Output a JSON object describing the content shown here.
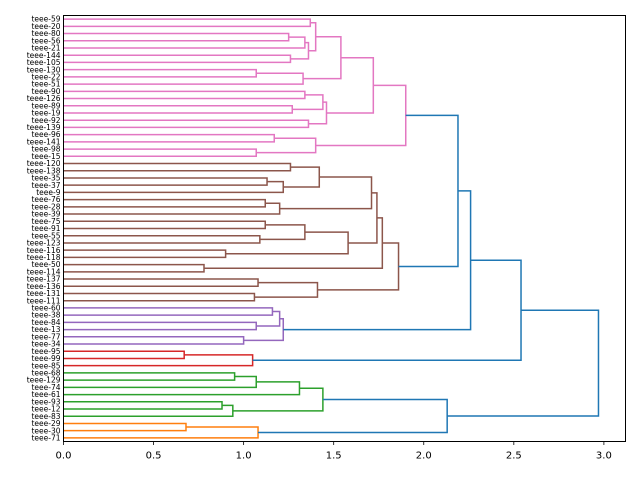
{
  "chart_data": {
    "type": "dendrogram",
    "title": "",
    "xlabel": "",
    "ylabel": "",
    "orientation": "right",
    "xlim": [
      0.0,
      3.12
    ],
    "x_ticks": [
      0.0,
      0.5,
      1.0,
      1.5,
      2.0,
      2.5,
      3.0
    ],
    "x_tick_labels": [
      "0.0",
      "0.5",
      "1.0",
      "1.5",
      "2.0",
      "2.5",
      "3.0"
    ],
    "above_threshold_color": "#1f77b4",
    "leaves": [
      "teee-59",
      "teee-20",
      "teee-80",
      "teee-56",
      "teee-21",
      "teee-144",
      "teee-105",
      "teee-130",
      "teee-22",
      "teee-51",
      "teee-90",
      "teee-126",
      "teee-89",
      "teee-19",
      "teee-92",
      "teee-139",
      "teee-96",
      "teee-141",
      "teee-98",
      "teee-15",
      "teee-120",
      "teee-138",
      "teee-35",
      "teee-37",
      "teee-9",
      "teee-76",
      "teee-28",
      "teee-39",
      "teee-75",
      "teee-91",
      "teee-55",
      "teee-123",
      "teee-116",
      "teee-118",
      "teee-50",
      "teee-114",
      "teee-137",
      "teee-136",
      "teee-131",
      "teee-111",
      "teee-60",
      "teee-38",
      "teee-84",
      "teee-13",
      "teee-77",
      "teee-34",
      "teee-95",
      "teee-99",
      "teee-85",
      "teee-68",
      "teee-129",
      "teee-74",
      "teee-61",
      "teee-93",
      "teee-12",
      "teee-83",
      "teee-29",
      "teee-30",
      "teee-71"
    ],
    "tree": {
      "h": 2.97,
      "c": "#1f77b4",
      "ch": [
        {
          "h": 2.54,
          "c": "#1f77b4",
          "ch": [
            {
              "h": 2.26,
              "c": "#1f77b4",
              "ch": [
                {
                  "h": 2.19,
                  "c": "#1f77b4",
                  "ch": [
                    {
                      "h": 1.9,
                      "c": "#e377c2",
                      "ch": [
                        {
                          "h": 1.72,
                          "c": "#e377c2",
                          "ch": [
                            {
                              "h": 1.54,
                              "c": "#e377c2",
                              "ch": [
                                {
                                  "h": 1.4,
                                  "c": "#e377c2",
                                  "ch": [
                                    {
                                      "h": 1.37,
                                      "c": "#e377c2",
                                      "ch": [
                                        0,
                                        1
                                      ]
                                    },
                                    {
                                      "h": 1.36,
                                      "c": "#e377c2",
                                      "ch": [
                                        {
                                          "h": 1.34,
                                          "c": "#e377c2",
                                          "ch": [
                                            {
                                              "h": 1.25,
                                              "c": "#e377c2",
                                              "ch": [
                                                2,
                                                3
                                              ]
                                            },
                                            4
                                          ]
                                        },
                                        {
                                          "h": 1.26,
                                          "c": "#e377c2",
                                          "ch": [
                                            5,
                                            6
                                          ]
                                        }
                                      ]
                                    }
                                  ]
                                },
                                {
                                  "h": 1.33,
                                  "c": "#e377c2",
                                  "ch": [
                                    {
                                      "h": 1.07,
                                      "c": "#e377c2",
                                      "ch": [
                                        7,
                                        8
                                      ]
                                    },
                                    9
                                  ]
                                }
                              ]
                            },
                            {
                              "h": 1.46,
                              "c": "#e377c2",
                              "ch": [
                                {
                                  "h": 1.44,
                                  "c": "#e377c2",
                                  "ch": [
                                    {
                                      "h": 1.34,
                                      "c": "#e377c2",
                                      "ch": [
                                        10,
                                        11
                                      ]
                                    },
                                    {
                                      "h": 1.27,
                                      "c": "#e377c2",
                                      "ch": [
                                        12,
                                        13
                                      ]
                                    }
                                  ]
                                },
                                {
                                  "h": 1.36,
                                  "c": "#e377c2",
                                  "ch": [
                                    14,
                                    15
                                  ]
                                }
                              ]
                            }
                          ]
                        },
                        {
                          "h": 1.4,
                          "c": "#e377c2",
                          "ch": [
                            {
                              "h": 1.17,
                              "c": "#e377c2",
                              "ch": [
                                16,
                                17
                              ]
                            },
                            {
                              "h": 1.07,
                              "c": "#e377c2",
                              "ch": [
                                18,
                                19
                              ]
                            }
                          ]
                        }
                      ]
                    },
                    {
                      "h": 1.86,
                      "c": "#8c564b",
                      "ch": [
                        {
                          "h": 1.77,
                          "c": "#8c564b",
                          "ch": [
                            {
                              "h": 1.74,
                              "c": "#8c564b",
                              "ch": [
                                {
                                  "h": 1.71,
                                  "c": "#8c564b",
                                  "ch": [
                                    {
                                      "h": 1.42,
                                      "c": "#8c564b",
                                      "ch": [
                                        {
                                          "h": 1.26,
                                          "c": "#8c564b",
                                          "ch": [
                                            20,
                                            21
                                          ]
                                        },
                                        {
                                          "h": 1.22,
                                          "c": "#8c564b",
                                          "ch": [
                                            {
                                              "h": 1.13,
                                              "c": "#8c564b",
                                              "ch": [
                                                22,
                                                23
                                              ]
                                            },
                                            24
                                          ]
                                        }
                                      ]
                                    },
                                    {
                                      "h": 1.2,
                                      "c": "#8c564b",
                                      "ch": [
                                        {
                                          "h": 1.12,
                                          "c": "#8c564b",
                                          "ch": [
                                            25,
                                            26
                                          ]
                                        },
                                        27
                                      ]
                                    }
                                  ]
                                },
                                {
                                  "h": 1.58,
                                  "c": "#8c564b",
                                  "ch": [
                                    {
                                      "h": 1.34,
                                      "c": "#8c564b",
                                      "ch": [
                                        {
                                          "h": 1.12,
                                          "c": "#8c564b",
                                          "ch": [
                                            28,
                                            29
                                          ]
                                        },
                                        {
                                          "h": 1.09,
                                          "c": "#8c564b",
                                          "ch": [
                                            30,
                                            31
                                          ]
                                        }
                                      ]
                                    },
                                    {
                                      "h": 0.9,
                                      "c": "#8c564b",
                                      "ch": [
                                        32,
                                        33
                                      ]
                                    }
                                  ]
                                }
                              ]
                            },
                            {
                              "h": 0.78,
                              "c": "#8c564b",
                              "ch": [
                                34,
                                35
                              ]
                            }
                          ]
                        },
                        {
                          "h": 1.41,
                          "c": "#8c564b",
                          "ch": [
                            {
                              "h": 1.08,
                              "c": "#8c564b",
                              "ch": [
                                36,
                                37
                              ]
                            },
                            {
                              "h": 1.06,
                              "c": "#8c564b",
                              "ch": [
                                38,
                                39
                              ]
                            }
                          ]
                        }
                      ]
                    }
                  ]
                },
                {
                  "h": 1.22,
                  "c": "#9467bd",
                  "ch": [
                    {
                      "h": 1.2,
                      "c": "#9467bd",
                      "ch": [
                        {
                          "h": 1.16,
                          "c": "#9467bd",
                          "ch": [
                            40,
                            41
                          ]
                        },
                        {
                          "h": 1.07,
                          "c": "#9467bd",
                          "ch": [
                            42,
                            43
                          ]
                        }
                      ]
                    },
                    {
                      "h": 1.0,
                      "c": "#9467bd",
                      "ch": [
                        44,
                        45
                      ]
                    }
                  ]
                }
              ]
            },
            {
              "h": 1.05,
              "c": "#d62728",
              "ch": [
                {
                  "h": 0.67,
                  "c": "#d62728",
                  "ch": [
                    46,
                    47
                  ]
                },
                48
              ]
            }
          ]
        },
        {
          "h": 2.13,
          "c": "#1f77b4",
          "ch": [
            {
              "h": 1.44,
              "c": "#2ca02c",
              "ch": [
                {
                  "h": 1.31,
                  "c": "#2ca02c",
                  "ch": [
                    {
                      "h": 1.07,
                      "c": "#2ca02c",
                      "ch": [
                        {
                          "h": 0.95,
                          "c": "#2ca02c",
                          "ch": [
                            49,
                            50
                          ]
                        },
                        51
                      ]
                    },
                    52
                  ]
                },
                {
                  "h": 0.94,
                  "c": "#2ca02c",
                  "ch": [
                    {
                      "h": 0.88,
                      "c": "#2ca02c",
                      "ch": [
                        53,
                        54
                      ]
                    },
                    55
                  ]
                }
              ]
            },
            {
              "h": 1.08,
              "c": "#ff7f0e",
              "ch": [
                {
                  "h": 0.68,
                  "c": "#ff7f0e",
                  "ch": [
                    56,
                    57
                  ]
                },
                58
              ]
            }
          ]
        }
      ]
    }
  }
}
